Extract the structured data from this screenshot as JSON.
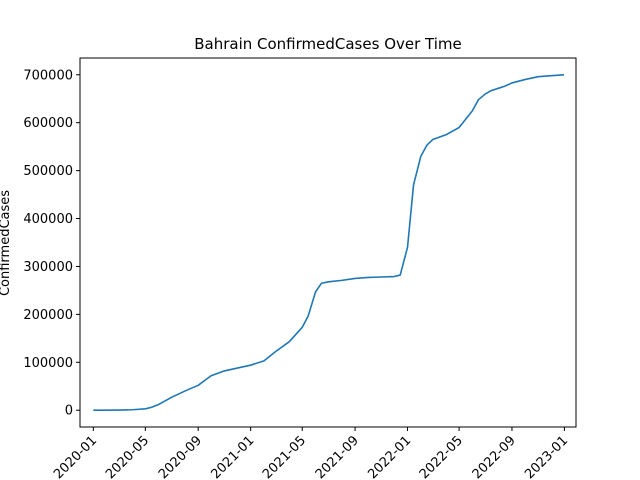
{
  "chart_data": {
    "type": "line",
    "title": "Bahrain  ConfirmedCases Over Time",
    "xlabel": "",
    "ylabel": "ConfirmedCases",
    "xlim": [
      "2019-12-01",
      "2023-01-28"
    ],
    "ylim": [
      -35000,
      735000
    ],
    "grid": false,
    "legend": "none",
    "line_color": "#1f77b4",
    "x_ticks": [
      "2020-01",
      "2020-05",
      "2020-09",
      "2021-01",
      "2021-05",
      "2021-09",
      "2022-01",
      "2022-05",
      "2022-09",
      "2023-01"
    ],
    "y_ticks": [
      0,
      100000,
      200000,
      300000,
      400000,
      500000,
      600000,
      700000
    ],
    "y_tick_labels": [
      "0",
      "100000",
      "200000",
      "300000",
      "400000",
      "500000",
      "600000",
      "700000"
    ],
    "series": [
      {
        "x": [
          "2020-01-01",
          "2020-02-01",
          "2020-03-01",
          "2020-04-01",
          "2020-05-01",
          "2020-05-15",
          "2020-06-01",
          "2020-07-01",
          "2020-08-01",
          "2020-09-01",
          "2020-10-01",
          "2020-11-01",
          "2020-12-01",
          "2021-01-01",
          "2021-02-01",
          "2021-03-01",
          "2021-04-01",
          "2021-05-01",
          "2021-05-15",
          "2021-06-01",
          "2021-06-15",
          "2021-07-01",
          "2021-08-01",
          "2021-09-01",
          "2021-10-01",
          "2021-11-01",
          "2021-12-01",
          "2021-12-15",
          "2022-01-01",
          "2022-01-15",
          "2022-02-01",
          "2022-02-15",
          "2022-03-01",
          "2022-04-01",
          "2022-05-01",
          "2022-06-01",
          "2022-06-15",
          "2022-07-01",
          "2022-07-15",
          "2022-08-01",
          "2022-08-15",
          "2022-09-01",
          "2022-10-01",
          "2022-11-01",
          "2022-12-01",
          "2022-12-31"
        ],
        "y": [
          0,
          0,
          300,
          1000,
          3000,
          6000,
          12000,
          27000,
          40000,
          52000,
          72000,
          82000,
          88000,
          94000,
          103000,
          123000,
          143000,
          173000,
          197000,
          247000,
          265000,
          268000,
          271000,
          275000,
          277000,
          278000,
          279000,
          282000,
          340000,
          470000,
          530000,
          553000,
          565000,
          575000,
          590000,
          625000,
          648000,
          660000,
          667000,
          672000,
          676000,
          683000,
          690000,
          696000,
          698000,
          700000
        ]
      }
    ]
  }
}
